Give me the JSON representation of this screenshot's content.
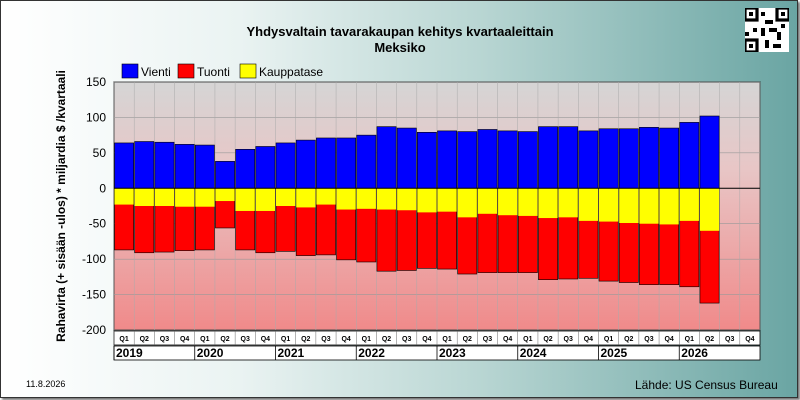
{
  "header": {
    "title": "Yhdysvaltain tavarakaupan kehitys kvartaaleittain",
    "subtitle": "Meksiko"
  },
  "footer": {
    "date": "11.8.2026",
    "source": "Lähde: US Census Bureau"
  },
  "colors": {
    "export": "#0000ff",
    "import": "#ff0000",
    "balance": "#ffff00"
  },
  "chart_data": {
    "type": "bar",
    "title": "Yhdysvaltain tavarakaupan kehitys kvartaaleittain",
    "subtitle": "Meksiko",
    "ylabel": "Rahavirta (+ sisään -ulos)  * miljardia $ /kvartaali",
    "ylim": [
      -200,
      150
    ],
    "yticks": [
      150,
      100,
      50,
      0,
      -50,
      -100,
      -150,
      -200
    ],
    "legend_position": "top-left",
    "legend": [
      "Vienti",
      "Tuonti",
      "Kauppatase"
    ],
    "quarter_labels": [
      "Q1",
      "Q2",
      "Q3",
      "Q4",
      "Q1",
      "Q2",
      "Q3",
      "Q4",
      "Q1",
      "Q2",
      "Q3",
      "Q4",
      "Q1",
      "Q2",
      "Q3",
      "Q4",
      "Q1",
      "Q2",
      "Q3",
      "Q4",
      "Q1",
      "Q2",
      "Q3",
      "Q4",
      "Q1",
      "Q2",
      "Q3",
      "Q4",
      "Q1",
      "Q2",
      "Q3",
      "Q4"
    ],
    "years": [
      "2019",
      "2020",
      "2021",
      "2022",
      "2023",
      "2024",
      "2025",
      "2026"
    ],
    "series": [
      {
        "name": "Vienti",
        "values": [
          64,
          66,
          65,
          62,
          61,
          38,
          55,
          59,
          64,
          68,
          71,
          71,
          75,
          87,
          85,
          79,
          81,
          80,
          83,
          81,
          80,
          87,
          87,
          81,
          84,
          84,
          86,
          85,
          93,
          102,
          null,
          null
        ]
      },
      {
        "name": "Tuonti",
        "values": [
          -87,
          -91,
          -90,
          -88,
          -87,
          -56,
          -87,
          -91,
          -89,
          -95,
          -94,
          -101,
          -104,
          -117,
          -116,
          -113,
          -114,
          -121,
          -119,
          -119,
          -119,
          -129,
          -128,
          -127,
          -131,
          -133,
          -136,
          -136,
          -139,
          -162,
          null,
          null
        ]
      },
      {
        "name": "Kauppatase",
        "values": [
          -23,
          -25,
          -25,
          -26,
          -26,
          -18,
          -32,
          -32,
          -25,
          -27,
          -23,
          -30,
          -29,
          -30,
          -31,
          -34,
          -33,
          -41,
          -36,
          -38,
          -39,
          -42,
          -41,
          -46,
          -47,
          -49,
          -50,
          -51,
          -46,
          -60,
          null,
          null
        ]
      }
    ]
  }
}
